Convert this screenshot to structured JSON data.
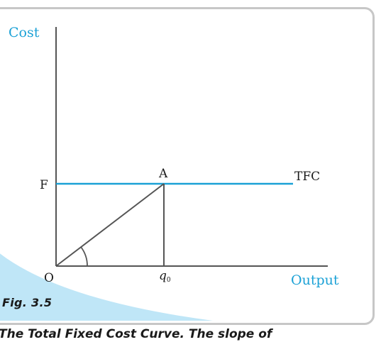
{
  "diagram": {
    "y_axis_label": "Cost",
    "x_axis_label": "Output",
    "origin_label": "O",
    "fixed_cost_label": "F",
    "point_label": "A",
    "curve_label": "TFC",
    "quantity_label": "q",
    "quantity_subscript": "0",
    "caption": "Fig. 3.5",
    "bottom_text": "The Total Fixed Cost Curve. The slope of",
    "colors": {
      "axis": "#555555",
      "tfc_line": "#1ba1d6",
      "label_blue": "#1ba1d6",
      "text": "#1a1a1a",
      "shade": "#bfe6f7",
      "frame": "#c7c7c7"
    }
  }
}
